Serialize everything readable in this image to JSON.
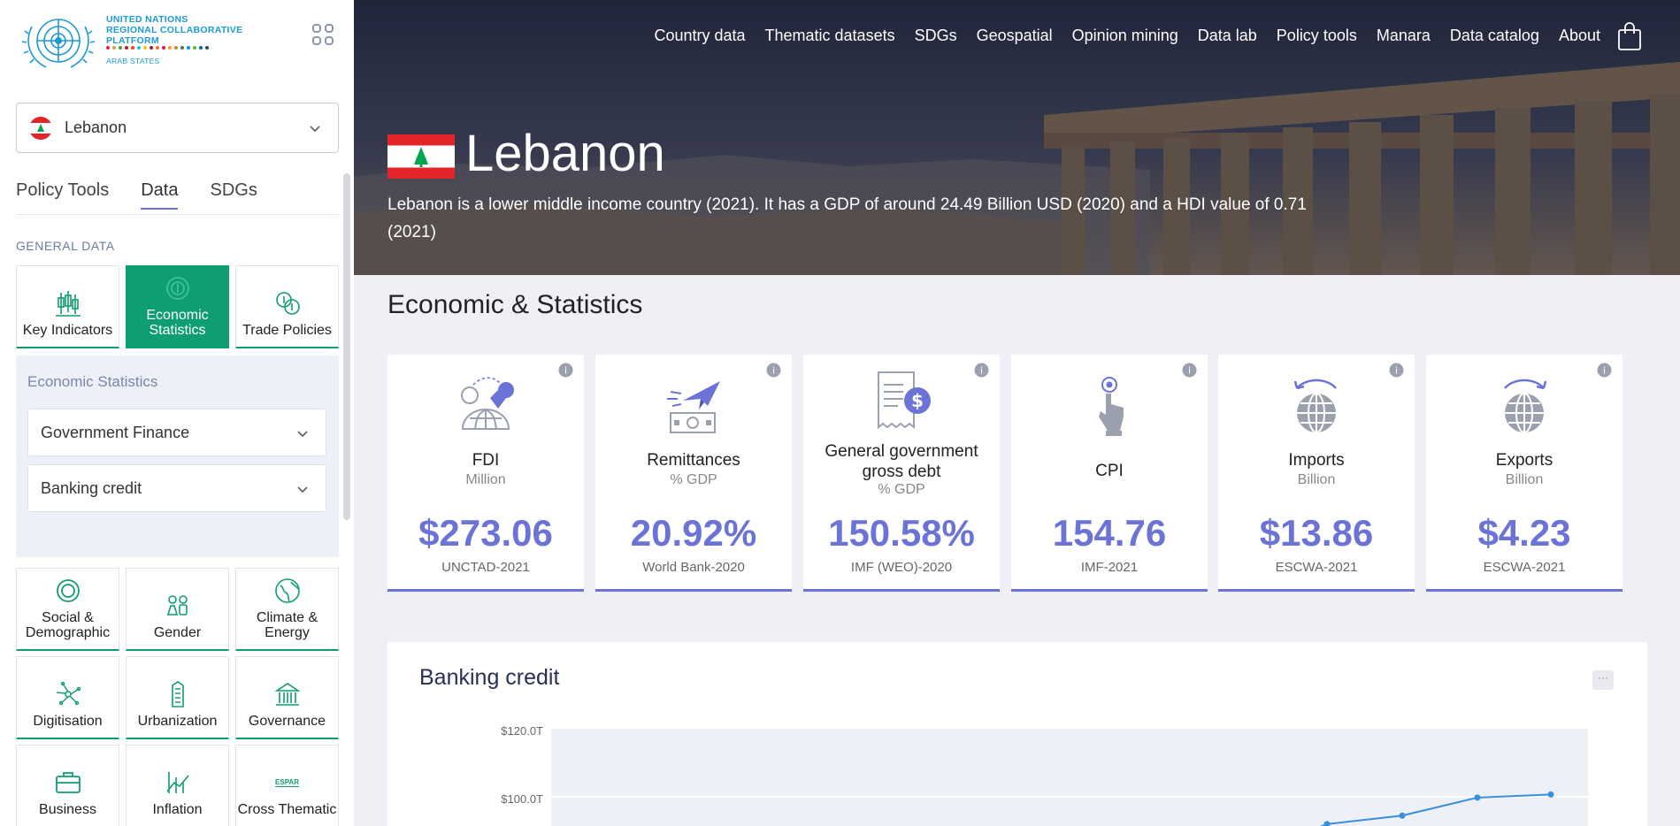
{
  "logo": {
    "line1": "UNITED NATIONS",
    "line2": "REGIONAL COLLABORATIVE",
    "line3": "PLATFORM",
    "sub": "ARAB STATES",
    "dot_colors": [
      "#e5243b",
      "#dda63a",
      "#4c9f38",
      "#c5192d",
      "#ff3a21",
      "#26bde2",
      "#fcc30b",
      "#a21942",
      "#fd6925",
      "#dd1367",
      "#fd9d24",
      "#bf8b2e",
      "#3f7e44",
      "#0a97d9",
      "#56c02b",
      "#00689d",
      "#19486a"
    ]
  },
  "sidebar": {
    "country": "Lebanon",
    "tabs": [
      {
        "label": "Policy Tools"
      },
      {
        "label": "Data"
      },
      {
        "label": "SDGs"
      }
    ],
    "section_label": "GENERAL DATA",
    "top_tiles": [
      {
        "label": "Key Indicators",
        "icon": "candlestick-icon"
      },
      {
        "label": "Economic Statistics",
        "icon": "coin-icon"
      },
      {
        "label": "Trade Policies",
        "icon": "coins-icon"
      }
    ],
    "panel": {
      "title": "Economic Statistics",
      "dropdowns": [
        {
          "label": "Government Finance"
        },
        {
          "label": "Banking credit"
        }
      ]
    },
    "bottom_tiles": [
      {
        "label": "Social & Demographic",
        "icon": "ring-icon"
      },
      {
        "label": "Gender",
        "icon": "gender-icon"
      },
      {
        "label": "Climate & Energy",
        "icon": "globe-leaf-icon"
      },
      {
        "label": "Digitisation",
        "icon": "network-icon"
      },
      {
        "label": "Urbanization",
        "icon": "building-icon"
      },
      {
        "label": "Governance",
        "icon": "capitol-icon"
      },
      {
        "label": "Business",
        "icon": "briefcase-icon"
      },
      {
        "label": "Inflation",
        "icon": "chart-rise-icon"
      },
      {
        "label": "Cross Thematic",
        "icon": "espar-icon",
        "badge": "ESPAR"
      }
    ],
    "accent": "#0f9d72"
  },
  "nav": {
    "items": [
      "Country data",
      "Thematic datasets",
      "SDGs",
      "Geospatial",
      "Opinion mining",
      "Data lab",
      "Policy tools",
      "Manara",
      "Data catalog",
      "About"
    ]
  },
  "hero": {
    "title": "Lebanon",
    "description": "Lebanon is a lower middle income country (2021). It has a GDP of around 24.49 Billion USD (2020) and a HDI value of 0.71 (2021)"
  },
  "main": {
    "title": "Economic & Statistics",
    "accent": "#6b74d6",
    "cards": [
      {
        "title": "FDI",
        "unit": "Million",
        "value": "$273.06",
        "source": "UNCTAD-2021",
        "icon": "globe-transfer-icon"
      },
      {
        "title": "Remittances",
        "unit": "% GDP",
        "value": "20.92%",
        "source": "World Bank-2020",
        "icon": "money-plane-icon"
      },
      {
        "title": "General government gross debt",
        "unit": "% GDP",
        "value": "150.58%",
        "source": "IMF (WEO)-2020",
        "icon": "invoice-dollar-icon"
      },
      {
        "title": "CPI",
        "unit": "",
        "value": "154.76",
        "source": "IMF-2021",
        "icon": "hand-pointer-icon"
      },
      {
        "title": "Imports",
        "unit": "Billion",
        "value": "$13.86",
        "source": "ESCWA-2021",
        "icon": "globe-arrow-icon"
      },
      {
        "title": "Exports",
        "unit": "Billion",
        "value": "$4.23",
        "source": "ESCWA-2021",
        "icon": "globe-arrow-icon"
      }
    ]
  },
  "chart": {
    "title": "Banking credit",
    "menu": "···"
  },
  "chart_data": {
    "type": "line",
    "title": "Banking credit",
    "y_ticks": [
      "$120.0T",
      "$100.0T"
    ],
    "ylim": [
      90,
      120
    ],
    "series": [
      {
        "values": [
          92.5,
          95.0,
          100.3,
          101.2
        ]
      }
    ],
    "color": "#3a8fd9"
  }
}
